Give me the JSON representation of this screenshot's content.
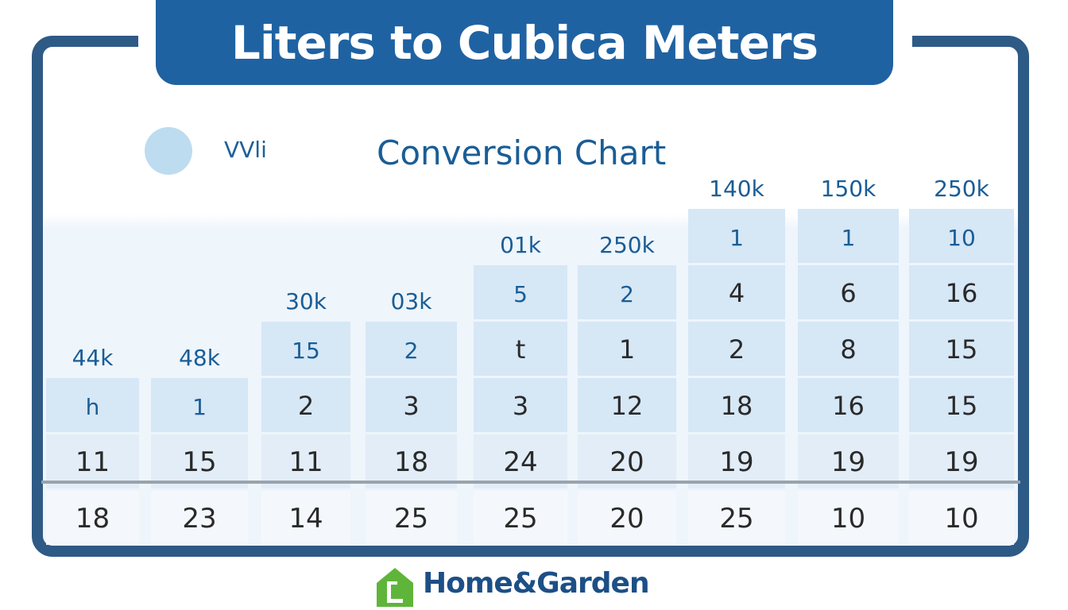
{
  "title": "Liters to Cubica Meters",
  "subtitle": "Conversion Chart",
  "legend_label": "VVli",
  "footer": {
    "brand": "Home&Garden"
  },
  "colors": {
    "banner": "#1f62a2",
    "frame": "#2e5a86",
    "cell_light": "#d6e7f6",
    "cell_pale": "#e3eef8",
    "text_dark": "#2a2a2a",
    "text_blue": "#1a5d96",
    "logo_green": "#5fb53a"
  },
  "chart_data": {
    "type": "table",
    "title": "Conversion Chart",
    "columns": [
      {
        "header": "44k",
        "values": [
          "h",
          "11",
          "18"
        ]
      },
      {
        "header": "48k",
        "values": [
          "1",
          "15",
          "23"
        ]
      },
      {
        "header": "30k",
        "values": [
          "15",
          "2",
          "11",
          "14"
        ]
      },
      {
        "header": "03k",
        "values": [
          "2",
          "3",
          "18",
          "25"
        ]
      },
      {
        "header": "01k",
        "values": [
          "5",
          "t",
          "3",
          "24",
          "25"
        ]
      },
      {
        "header": "250k",
        "values": [
          "2",
          "1",
          "12",
          "20",
          "20"
        ]
      },
      {
        "header": "140k",
        "values": [
          "1",
          "4",
          "2",
          "18",
          "19",
          "25"
        ]
      },
      {
        "header": "150k",
        "values": [
          "1",
          "6",
          "8",
          "16",
          "19",
          "10"
        ]
      },
      {
        "header": "250k",
        "values": [
          "10",
          "16",
          "15",
          "15",
          "19",
          "10"
        ]
      }
    ]
  }
}
